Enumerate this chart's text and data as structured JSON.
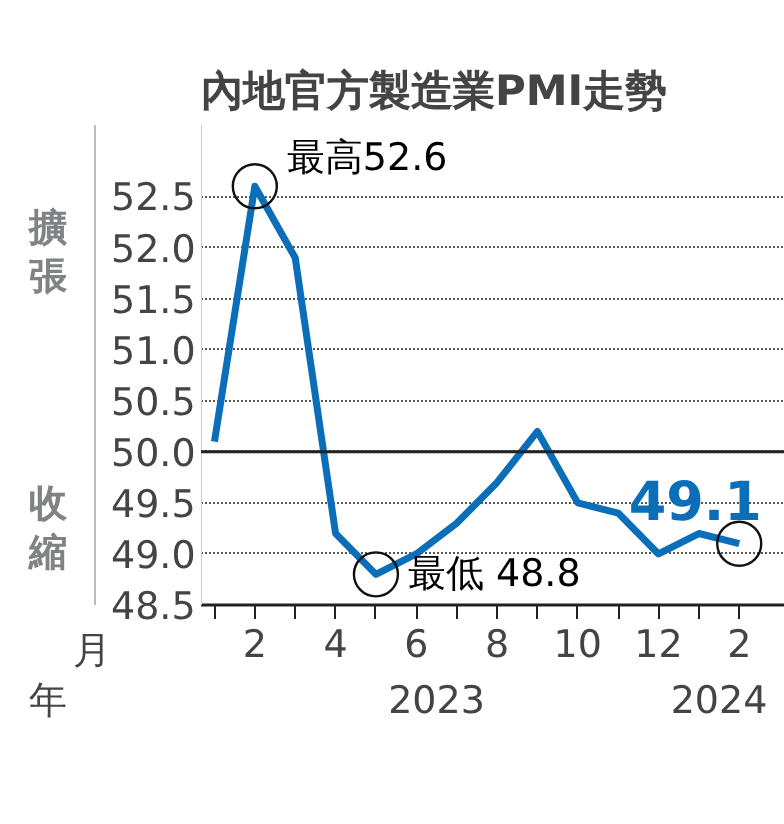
{
  "chart_data": {
    "type": "line",
    "title": "內地官方製造業PMI走勢",
    "x": [
      "2023-01",
      "2023-02",
      "2023-03",
      "2023-04",
      "2023-05",
      "2023-06",
      "2023-07",
      "2023-08",
      "2023-09",
      "2023-10",
      "2023-11",
      "2023-12",
      "2024-01",
      "2024-02"
    ],
    "series": [
      {
        "color": "#0a6eb9",
        "values": [
          50.1,
          52.6,
          51.9,
          49.2,
          48.8,
          49.0,
          49.3,
          49.7,
          50.2,
          49.5,
          49.4,
          49.0,
          49.2,
          49.1
        ]
      }
    ],
    "xlim": [
      "2022-12-21",
      "2024-03-05"
    ],
    "xticks": [
      {
        "value": "2023-01",
        "label": null
      },
      {
        "value": "2023-02",
        "label": "2"
      },
      {
        "value": "2023-03",
        "label": null
      },
      {
        "value": "2023-04",
        "label": "4"
      },
      {
        "value": "2023-05",
        "label": null
      },
      {
        "value": "2023-06",
        "label": "6"
      },
      {
        "value": "2023-07",
        "label": null
      },
      {
        "value": "2023-08",
        "label": "8"
      },
      {
        "value": "2023-09",
        "label": null
      },
      {
        "value": "2023-10",
        "label": "10"
      },
      {
        "value": "2023-11",
        "label": null
      },
      {
        "value": "2023-12",
        "label": "12"
      },
      {
        "value": "2024-01",
        "label": null
      },
      {
        "value": "2024-02",
        "label": "2"
      }
    ],
    "ylim": [
      48.5,
      53.2
    ],
    "yticks": [
      {
        "value": 48.5,
        "label": "48.5"
      },
      {
        "value": 49.0,
        "label": "49.0"
      },
      {
        "value": 49.5,
        "label": "49.5"
      },
      {
        "value": 50.0,
        "label": "50.0"
      },
      {
        "value": 50.5,
        "label": "50.5"
      },
      {
        "value": 51.0,
        "label": "51.0"
      },
      {
        "value": 51.5,
        "label": "51.5"
      },
      {
        "value": 52.0,
        "label": "52.0"
      },
      {
        "value": 52.5,
        "label": "52.5"
      }
    ],
    "grid": "y",
    "line_style": "solid",
    "marker": "none",
    "ref_lines": [
      {
        "axis": "y",
        "value": 50.0,
        "label": null,
        "color": "#222222"
      }
    ],
    "annotations": [
      "擴張",
      "收縮",
      "月",
      "年",
      "2023",
      "2024",
      {
        "text": "最高52.6",
        "x": "2023-02",
        "y": 52.6
      },
      {
        "text": "最低 48.8",
        "x": "2023-05",
        "y": 48.8
      },
      {
        "text": "49.1",
        "x": "2024-02",
        "y": 49.1
      }
    ]
  }
}
